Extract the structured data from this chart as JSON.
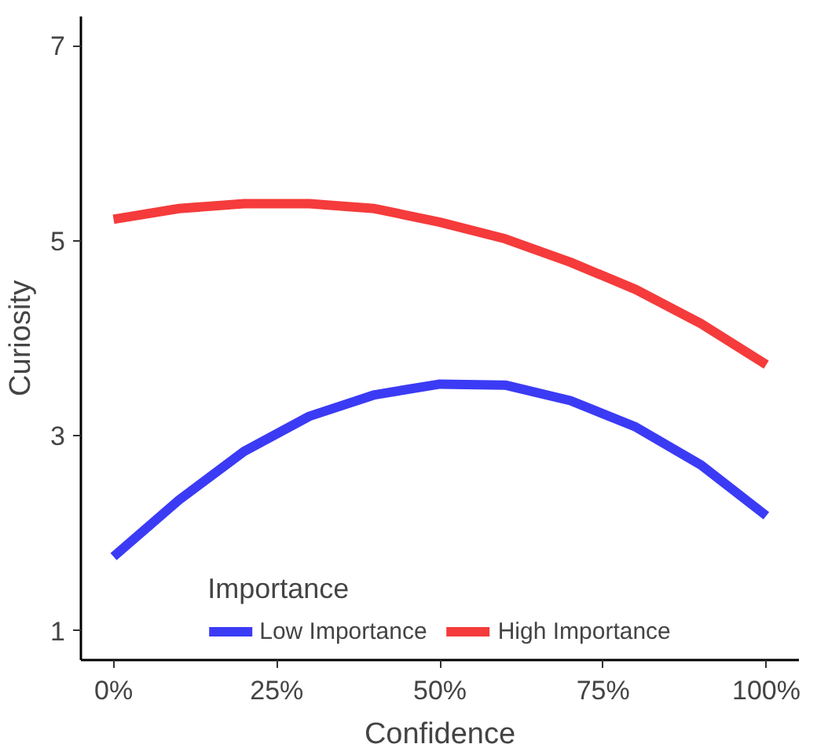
{
  "chart_data": {
    "type": "line",
    "xlabel": "Confidence",
    "ylabel": "Curiosity",
    "legend_title": "Importance",
    "legend": "bottom",
    "grid": false,
    "x": [
      0,
      10,
      20,
      30,
      40,
      50,
      60,
      70,
      80,
      90,
      100
    ],
    "series": [
      {
        "name": "Low Importance",
        "color": "#3b3bf5",
        "values": [
          1.76,
          2.34,
          2.84,
          3.2,
          3.42,
          3.53,
          3.52,
          3.36,
          3.09,
          2.7,
          2.18
        ]
      },
      {
        "name": "High Importance",
        "color": "#f53b3b",
        "values": [
          5.22,
          5.33,
          5.38,
          5.38,
          5.33,
          5.19,
          5.02,
          4.78,
          4.5,
          4.15,
          3.73
        ]
      }
    ],
    "xlim": [
      -5,
      105
    ],
    "xticks": [
      {
        "value": 0,
        "label": "0%"
      },
      {
        "value": 25,
        "label": "25%"
      },
      {
        "value": 50,
        "label": "50%"
      },
      {
        "value": 75,
        "label": "75%"
      },
      {
        "value": 100,
        "label": "100%"
      }
    ],
    "ylim": [
      0.7,
      7.3
    ],
    "yticks": [
      1,
      3,
      5,
      7
    ],
    "line_style": "solid"
  }
}
